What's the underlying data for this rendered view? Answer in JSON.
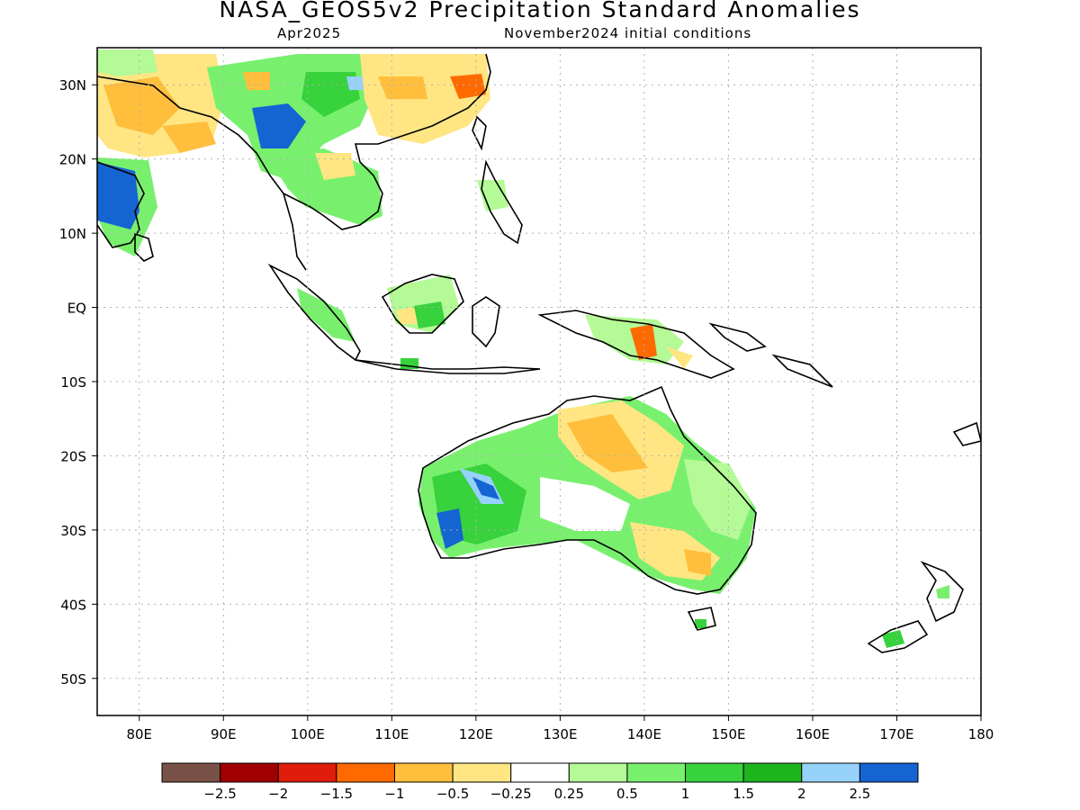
{
  "header": {
    "title": "NASA_GEOS5v2 Precipitation Standard Anomalies",
    "target_month": "Apr2025",
    "init_conditions": "November2024 initial conditions"
  },
  "map": {
    "lat_labels": [
      "30N",
      "20N",
      "10N",
      "EQ",
      "10S",
      "20S",
      "30S",
      "40S",
      "50S"
    ],
    "lat_values": [
      30,
      20,
      10,
      0,
      -10,
      -20,
      -30,
      -40,
      -50
    ],
    "lon_labels": [
      "80E",
      "90E",
      "100E",
      "110E",
      "120E",
      "130E",
      "140E",
      "150E",
      "160E",
      "170E",
      "180"
    ],
    "lon_values": [
      80,
      90,
      100,
      110,
      120,
      130,
      140,
      150,
      160,
      170,
      180
    ],
    "extent": {
      "lon_min": 75,
      "lon_max": 180,
      "lat_min": -55,
      "lat_max": 35
    }
  },
  "colorbar": {
    "colors": [
      "#7a5146",
      "#a00000",
      "#e01c0c",
      "#ff6a00",
      "#ffbe3c",
      "#ffe682",
      "#ffffff",
      "#b4fa96",
      "#78f06e",
      "#37d23c",
      "#1eb41e",
      "#96d2fa",
      "#1464d2"
    ],
    "tick_labels": [
      "-2.5",
      "-2",
      "-1.5",
      "-1",
      "-0.5",
      "-0.25",
      "0.25",
      "0.5",
      "1",
      "1.5",
      "2",
      "2.5"
    ]
  },
  "colors": {
    "land_outline": "#000000",
    "grid": "#b0b0b0"
  }
}
